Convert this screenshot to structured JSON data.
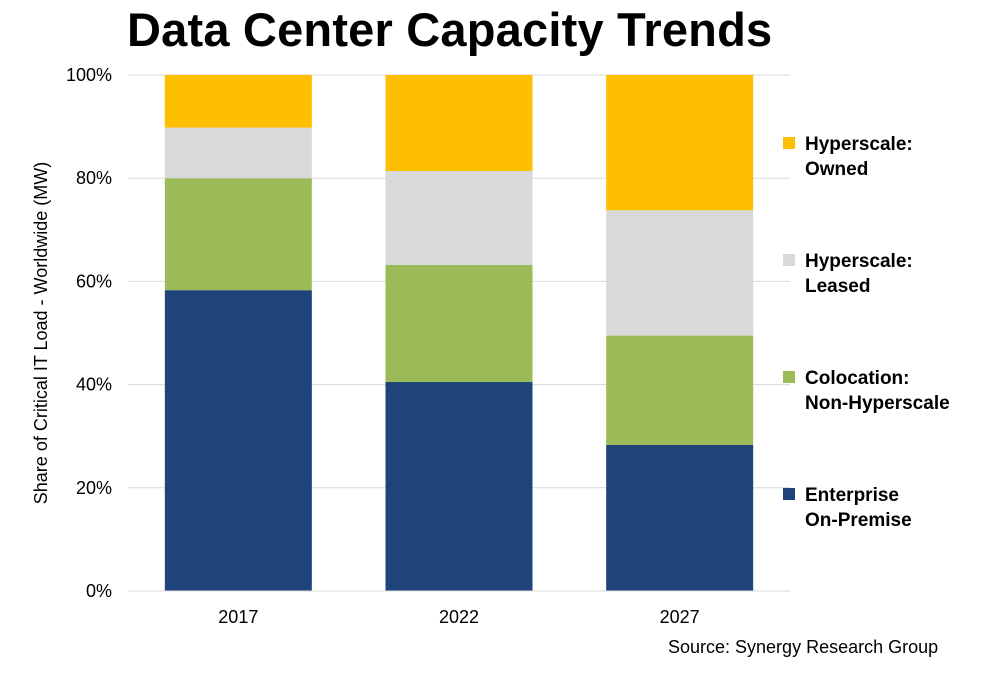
{
  "chart_data": {
    "type": "bar",
    "stacked": true,
    "title": "Data Center Capacity Trends",
    "ylabel": "Share of Critical IT Load - Worldwide (MW)",
    "xlabel": "",
    "categories": [
      "2017",
      "2022",
      "2027"
    ],
    "ylim": [
      0,
      100
    ],
    "yticks": [
      "0%",
      "20%",
      "40%",
      "60%",
      "80%",
      "100%"
    ],
    "ytick_values": [
      0,
      20,
      40,
      60,
      80,
      100
    ],
    "grid": true,
    "legend_position": "right",
    "series": [
      {
        "name_lines": [
          "Enterprise",
          "On-Premise"
        ],
        "color": "#1f4479",
        "values": [
          58.3,
          40.5,
          28.3
        ]
      },
      {
        "name_lines": [
          "Colocation:",
          "Non-Hyperscale"
        ],
        "color": "#9bbb59",
        "values": [
          21.7,
          22.7,
          21.2
        ]
      },
      {
        "name_lines": [
          "Hyperscale:",
          "Leased"
        ],
        "color": "#d9d9d9",
        "values": [
          9.8,
          18.2,
          24.3
        ]
      },
      {
        "name_lines": [
          "Hyperscale:",
          "Owned"
        ],
        "color": "#fdbf00",
        "values": [
          10.2,
          18.6,
          26.2
        ]
      }
    ]
  },
  "source": "Source: Synergy  Research Group"
}
